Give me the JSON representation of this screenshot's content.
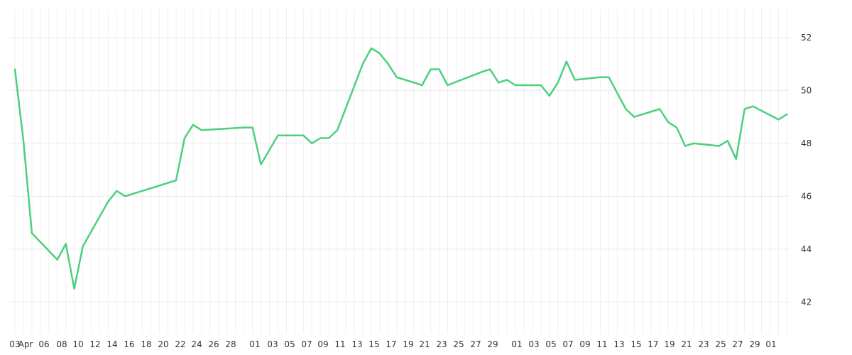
{
  "chart_data": {
    "type": "line",
    "title": "",
    "xlabel": "",
    "ylabel": "",
    "x_ticks": [
      "03",
      "Apr",
      "06",
      "08",
      "10",
      "12",
      "14",
      "16",
      "18",
      "20",
      "22",
      "24",
      "26",
      "28",
      "01",
      "03",
      "05",
      "07",
      "09",
      "11",
      "13",
      "15",
      "17",
      "19",
      "21",
      "23",
      "25",
      "27",
      "29",
      "01",
      "03",
      "05",
      "07",
      "09",
      "11",
      "13",
      "15",
      "17",
      "19",
      "21",
      "23",
      "25",
      "27",
      "29",
      "01"
    ],
    "y_ticks": [
      "42",
      "44",
      "46",
      "48",
      "50",
      "52"
    ],
    "ylim": [
      40.8,
      53.1
    ],
    "grid": true,
    "y_axis_position": "right",
    "series": [
      {
        "color": "#4cd07d",
        "x": [
          "03-03",
          "03-04",
          "03-05",
          "03-08",
          "03-09",
          "03-10",
          "03-11",
          "03-14",
          "03-15",
          "03-16",
          "03-17",
          "03-22",
          "03-23",
          "03-24",
          "03-25",
          "03-30",
          "03-31",
          "04-01",
          "04-03",
          "04-06",
          "04-07",
          "04-08",
          "04-09",
          "04-10",
          "04-13",
          "04-14",
          "04-15",
          "04-16",
          "04-17",
          "04-20",
          "04-21",
          "04-22",
          "04-23",
          "04-27",
          "04-28",
          "04-29",
          "04-30",
          "05-01",
          "05-04",
          "05-05",
          "05-06",
          "05-07",
          "05-08",
          "05-11",
          "05-12",
          "05-14",
          "05-15",
          "05-18",
          "05-19",
          "05-20",
          "05-21",
          "05-22",
          "05-25",
          "05-26",
          "05-27",
          "05-28",
          "05-29",
          "06-01",
          "06-02"
        ],
        "values": [
          50.8,
          48.1,
          44.6,
          43.6,
          44.2,
          42.5,
          44.1,
          45.8,
          46.2,
          46.0,
          46.1,
          46.6,
          48.2,
          48.7,
          48.5,
          48.6,
          48.6,
          47.2,
          48.3,
          48.3,
          48.0,
          48.2,
          48.2,
          48.5,
          51.0,
          51.6,
          51.4,
          51.0,
          50.5,
          50.2,
          50.8,
          50.8,
          50.2,
          50.7,
          50.8,
          50.3,
          50.4,
          50.2,
          50.2,
          49.8,
          50.3,
          51.1,
          50.4,
          50.5,
          50.5,
          49.3,
          49.0,
          49.3,
          48.8,
          48.6,
          47.9,
          48.0,
          47.9,
          48.1,
          47.4,
          49.3,
          49.4,
          48.9,
          49.1
        ]
      }
    ]
  }
}
